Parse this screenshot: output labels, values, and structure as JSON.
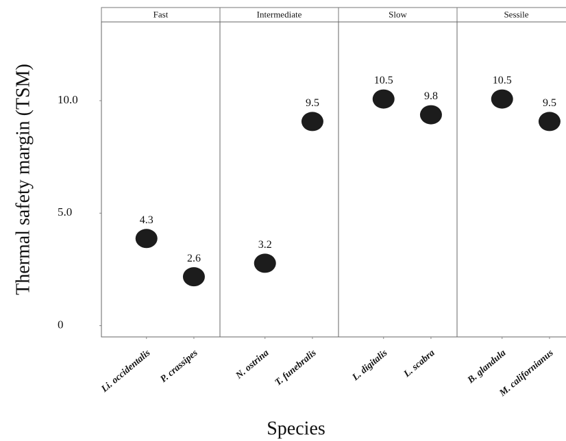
{
  "chart_data": {
    "type": "scatter",
    "y_label": "Thermal safety margin (TSM)",
    "x_label": "Species",
    "ylim": [
      -0.5,
      13.5
    ],
    "yticks": [
      0,
      {
        "value": 5,
        "label": "5.0"
      },
      {
        "value": 10,
        "label": "10.0"
      }
    ],
    "color": "#1c1c1c",
    "facets": [
      {
        "name": "Fast",
        "categories": [
          "Li. occidentalis",
          "P. crassipes"
        ],
        "values": [
          4.3,
          2.6
        ]
      },
      {
        "name": "Intermediate",
        "categories": [
          "N. ostrina",
          "T. funebralis"
        ],
        "values": [
          3.2,
          9.5
        ]
      },
      {
        "name": "Slow",
        "categories": [
          "L. digitalis",
          "L. scabra"
        ],
        "values": [
          10.5,
          9.8
        ]
      },
      {
        "name": "Sessile",
        "categories": [
          "B. glandula",
          "M. californianus"
        ],
        "values": [
          10.5,
          9.5
        ]
      }
    ]
  }
}
